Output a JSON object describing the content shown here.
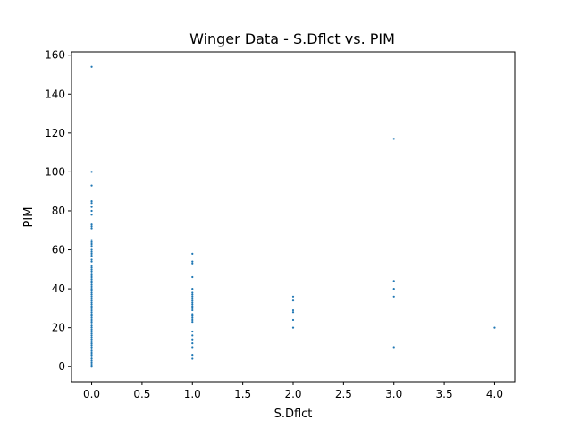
{
  "chart_data": {
    "type": "scatter",
    "title": "Winger Data - S.Dflct vs. PIM",
    "xlabel": "S.Dflct",
    "ylabel": "PIM",
    "xlim": [
      -0.2,
      4.2
    ],
    "ylim": [
      -7.7,
      161.7
    ],
    "x_ticks": [
      0,
      0.5,
      1,
      1.5,
      2,
      2.5,
      3,
      3.5,
      4
    ],
    "x_tick_labels": [
      "0.0",
      "0.5",
      "1.0",
      "1.5",
      "2.0",
      "2.5",
      "3.0",
      "3.5",
      "4.0"
    ],
    "y_ticks": [
      0,
      20,
      40,
      60,
      80,
      100,
      120,
      140,
      160
    ],
    "y_tick_labels": [
      "0",
      "20",
      "40",
      "60",
      "80",
      "100",
      "120",
      "140",
      "160"
    ],
    "grid": false,
    "legend": "none",
    "marker_color": "#1f77b4",
    "series": [
      {
        "points": [
          [
            0,
            154
          ],
          [
            0,
            100
          ],
          [
            0,
            93
          ],
          [
            0,
            85
          ],
          [
            0,
            84
          ],
          [
            0,
            82
          ],
          [
            0,
            80
          ],
          [
            0,
            78
          ],
          [
            0,
            73
          ],
          [
            0,
            72
          ],
          [
            0,
            71
          ],
          [
            0,
            65
          ],
          [
            0,
            64
          ],
          [
            0,
            63
          ],
          [
            0,
            62
          ],
          [
            0,
            60
          ],
          [
            0,
            59
          ],
          [
            0,
            58
          ],
          [
            0,
            57
          ],
          [
            0,
            55
          ],
          [
            0,
            54
          ],
          [
            0,
            52
          ],
          [
            0,
            51
          ],
          [
            0,
            50
          ],
          [
            0,
            49
          ],
          [
            0,
            48
          ],
          [
            0,
            47
          ],
          [
            0,
            46
          ],
          [
            0,
            45
          ],
          [
            0,
            44
          ],
          [
            0,
            43
          ],
          [
            0,
            42
          ],
          [
            0,
            41
          ],
          [
            0,
            40
          ],
          [
            0,
            39
          ],
          [
            0,
            38
          ],
          [
            0,
            37
          ],
          [
            0,
            36
          ],
          [
            0,
            35
          ],
          [
            0,
            34
          ],
          [
            0,
            33
          ],
          [
            0,
            32
          ],
          [
            0,
            31
          ],
          [
            0,
            30
          ],
          [
            0,
            29
          ],
          [
            0,
            28
          ],
          [
            0,
            27
          ],
          [
            0,
            26
          ],
          [
            0,
            25
          ],
          [
            0,
            24
          ],
          [
            0,
            23
          ],
          [
            0,
            22
          ],
          [
            0,
            21
          ],
          [
            0,
            20
          ],
          [
            0,
            19
          ],
          [
            0,
            18
          ],
          [
            0,
            17
          ],
          [
            0,
            16
          ],
          [
            0,
            15
          ],
          [
            0,
            14
          ],
          [
            0,
            13
          ],
          [
            0,
            12
          ],
          [
            0,
            11
          ],
          [
            0,
            10
          ],
          [
            0,
            9
          ],
          [
            0,
            8
          ],
          [
            0,
            7
          ],
          [
            0,
            6
          ],
          [
            0,
            5
          ],
          [
            0,
            4
          ],
          [
            0,
            3
          ],
          [
            0,
            2
          ],
          [
            0,
            1
          ],
          [
            0,
            0
          ],
          [
            1,
            58
          ],
          [
            1,
            54
          ],
          [
            1,
            53
          ],
          [
            1,
            46
          ],
          [
            1,
            40
          ],
          [
            1,
            38
          ],
          [
            1,
            37
          ],
          [
            1,
            36
          ],
          [
            1,
            35
          ],
          [
            1,
            34
          ],
          [
            1,
            33
          ],
          [
            1,
            32
          ],
          [
            1,
            31
          ],
          [
            1,
            30
          ],
          [
            1,
            29
          ],
          [
            1,
            27
          ],
          [
            1,
            26
          ],
          [
            1,
            25
          ],
          [
            1,
            24
          ],
          [
            1,
            23
          ],
          [
            1,
            18
          ],
          [
            1,
            16
          ],
          [
            1,
            14
          ],
          [
            1,
            12
          ],
          [
            1,
            10
          ],
          [
            1,
            6
          ],
          [
            1,
            4
          ],
          [
            2,
            36
          ],
          [
            2,
            34
          ],
          [
            2,
            29
          ],
          [
            2,
            28
          ],
          [
            2,
            24
          ],
          [
            2,
            20
          ],
          [
            3,
            117
          ],
          [
            3,
            44
          ],
          [
            3,
            40
          ],
          [
            3,
            36
          ],
          [
            3,
            10
          ],
          [
            4,
            20
          ]
        ]
      }
    ]
  }
}
